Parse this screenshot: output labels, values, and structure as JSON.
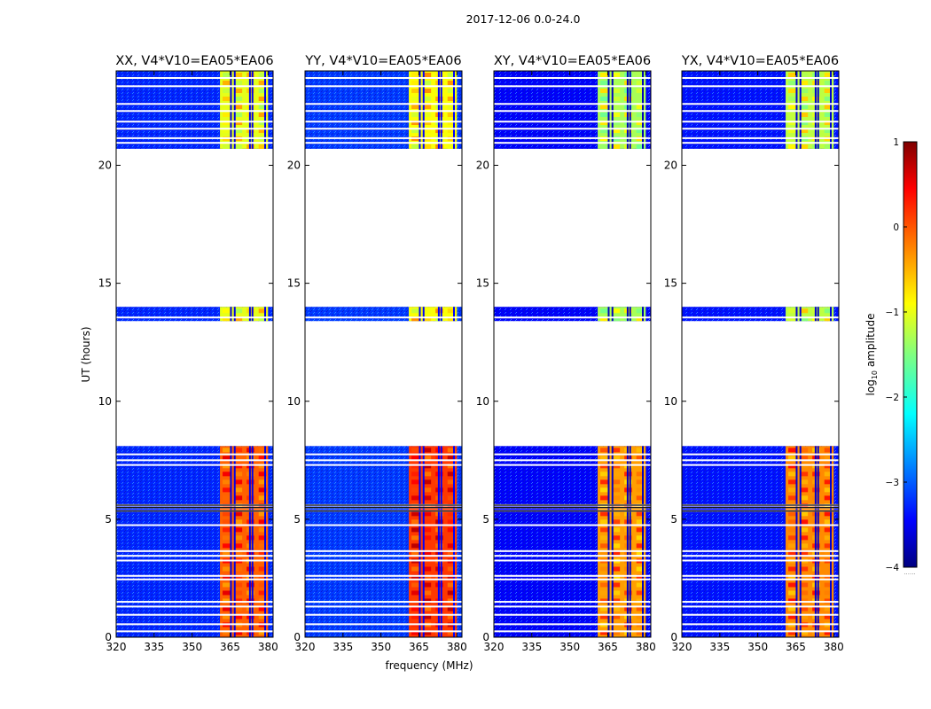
{
  "figure_title": "2017-12-06 0.0-24.0",
  "chart_data": {
    "type": "heatmap",
    "description_units": {
      "x": "MHz",
      "y": "hours",
      "color": "log10 amplitude"
    },
    "xlabel": "frequency (MHz)",
    "ylabel": "UT (hours)",
    "xlim": [
      320,
      382
    ],
    "ylim": [
      0,
      24
    ],
    "xticks": [
      320,
      335,
      350,
      365,
      380
    ],
    "yticks": [
      0,
      5,
      10,
      15,
      20
    ],
    "colorbar": {
      "label_prefix": "log",
      "label_sub": "10",
      "label_suffix": " amplitude",
      "range": [
        -4,
        1
      ],
      "ticks": [
        1,
        0,
        -1,
        -2,
        -3,
        -4
      ],
      "tick_labels": [
        "1",
        "0",
        "−1",
        "−2",
        "−3",
        "−4"
      ],
      "colormap": "jet",
      "extra_text": "......"
    },
    "data_blocks_hours": [
      [
        0.0,
        3.4
      ],
      [
        3.4,
        8.1
      ],
      [
        13.4,
        14.0
      ],
      [
        20.7,
        24.0
      ]
    ],
    "flagged_lines_hours": [
      0.25,
      0.55,
      0.95,
      1.3,
      1.5,
      2.45,
      2.6,
      3.25,
      3.45,
      3.65,
      4.75,
      5.35,
      5.5,
      5.6,
      7.3,
      7.5,
      7.75,
      13.55,
      20.95,
      21.15,
      21.55,
      21.85,
      22.3,
      22.6,
      23.35,
      23.7
    ],
    "bright_band_mhz": [
      361,
      380
    ],
    "gap_columns_mhz": [
      365,
      366.5,
      372.5,
      373.5,
      378.5
    ],
    "panels": [
      {
        "name": "xx",
        "title": "XX, V4*V10=EA05*EA06",
        "band_level_low": -0.4,
        "band_level_high": -1.3,
        "background_level": -3.2
      },
      {
        "name": "yy",
        "title": "YY, V4*V10=EA05*EA06",
        "band_level_low": -0.2,
        "band_level_high": -1.2,
        "background_level": -3.1
      },
      {
        "name": "xy",
        "title": "XY, V4*V10=EA05*EA06",
        "band_level_low": -0.7,
        "band_level_high": -1.6,
        "background_level": -3.4
      },
      {
        "name": "yx",
        "title": "YX, V4*V10=EA05*EA06",
        "band_level_low": -0.6,
        "band_level_high": -1.5,
        "background_level": -3.3
      }
    ]
  }
}
